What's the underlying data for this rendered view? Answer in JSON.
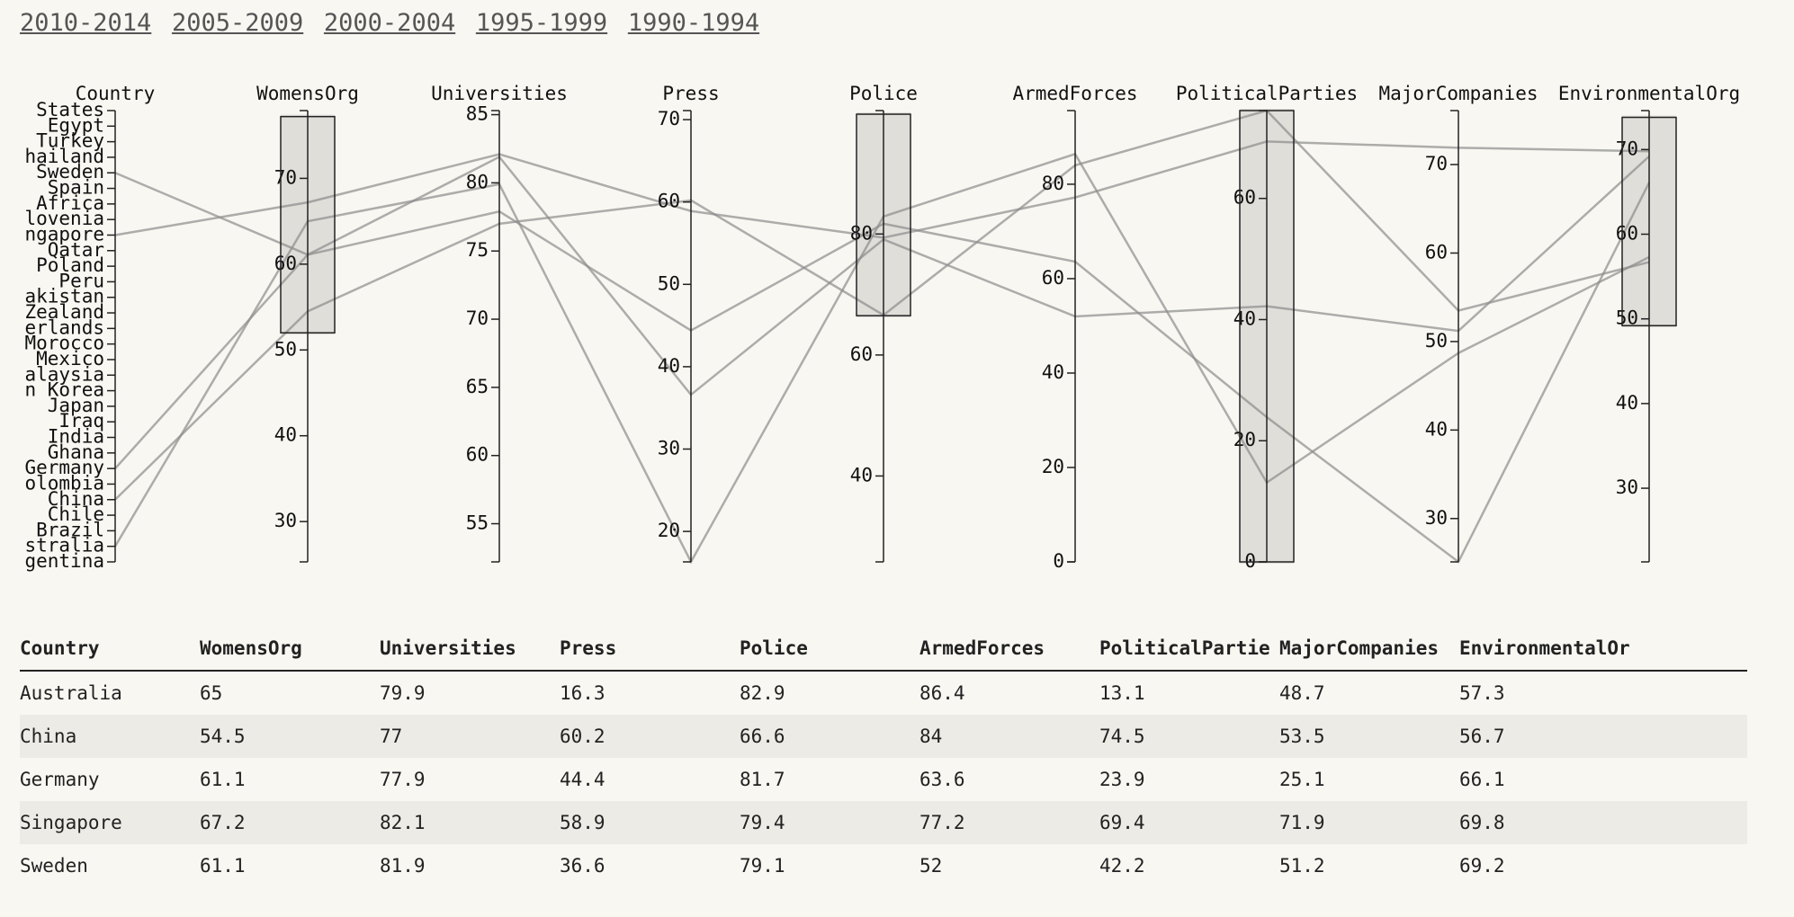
{
  "nav": {
    "periods": [
      "2010-2014",
      "2005-2009",
      "2000-2004",
      "1995-1999",
      "1990-1994"
    ]
  },
  "chart_data": {
    "type": "parallel-coordinates",
    "dimensions": [
      "Country",
      "WomensOrg",
      "Universities",
      "Press",
      "Police",
      "ArmedForces",
      "PoliticalParties",
      "MajorCompanies",
      "EnvironmentalOrg"
    ],
    "country_axis": [
      "States",
      "Egypt",
      "Turkey",
      "hailand",
      "Sweden",
      "Spain",
      "Africa",
      "lovenia",
      "ngapore",
      "Qatar",
      "Poland",
      "Peru",
      "akistan",
      "Zealand",
      "erlands",
      "Morocco",
      "Mexico",
      "alaysia",
      "n Korea",
      "Japan",
      "Iraq",
      "India",
      "Ghana",
      "Germany",
      "olombia",
      "China",
      "Chile",
      "Brazil",
      "stralia",
      "gentina"
    ],
    "axes": [
      {
        "name": "WomensOrg",
        "domain": [
          25.3,
          77.9
        ],
        "ticks": [
          30,
          40,
          50,
          60,
          70
        ]
      },
      {
        "name": "Universities",
        "domain": [
          52.2,
          85.3
        ],
        "ticks": [
          55,
          60,
          65,
          70,
          75,
          80,
          85
        ]
      },
      {
        "name": "Press",
        "domain": [
          16.3,
          71.1
        ],
        "ticks": [
          20,
          30,
          40,
          50,
          60,
          70
        ]
      },
      {
        "name": "Police",
        "domain": [
          25.8,
          100.4
        ],
        "ticks": [
          40,
          60,
          80
        ]
      },
      {
        "name": "ArmedForces",
        "domain": [
          0,
          95.6
        ],
        "ticks": [
          0,
          20,
          40,
          60,
          80
        ]
      },
      {
        "name": "PoliticalParties",
        "domain": [
          0,
          74.5
        ],
        "ticks": [
          0,
          20,
          40,
          60
        ]
      },
      {
        "name": "MajorCompanies",
        "domain": [
          25.1,
          76.1
        ],
        "ticks": [
          30,
          40,
          50,
          60,
          70
        ]
      },
      {
        "name": "EnvironmentalOrg",
        "domain": [
          21.3,
          74.6
        ],
        "ticks": [
          30,
          40,
          50,
          60,
          70
        ]
      }
    ],
    "brushes": [
      {
        "axis": "WomensOrg",
        "range": [
          52,
          77.2
        ]
      },
      {
        "axis": "Police",
        "range": [
          66.5,
          99.8
        ]
      },
      {
        "axis": "PoliticalParties",
        "range": [
          0,
          74.5
        ]
      },
      {
        "axis": "EnvironmentalOrg",
        "range": [
          49.2,
          73.8
        ]
      }
    ],
    "rows": [
      {
        "Country": "Australia",
        "WomensOrg": 65,
        "Universities": 79.9,
        "Press": 16.3,
        "Police": 82.9,
        "ArmedForces": 86.4,
        "PoliticalParties": 13.1,
        "MajorCompanies": 48.7,
        "EnvironmentalOrg": 57.3
      },
      {
        "Country": "China",
        "WomensOrg": 54.5,
        "Universities": 77,
        "Press": 60.2,
        "Police": 66.6,
        "ArmedForces": 84,
        "PoliticalParties": 74.5,
        "MajorCompanies": 53.5,
        "EnvironmentalOrg": 56.7
      },
      {
        "Country": "Germany",
        "WomensOrg": 61.1,
        "Universities": 77.9,
        "Press": 44.4,
        "Police": 81.7,
        "ArmedForces": 63.6,
        "PoliticalParties": 23.9,
        "MajorCompanies": 25.1,
        "EnvironmentalOrg": 66.1
      },
      {
        "Country": "Singapore",
        "WomensOrg": 67.2,
        "Universities": 82.1,
        "Press": 58.9,
        "Police": 79.4,
        "ArmedForces": 77.2,
        "PoliticalParties": 69.4,
        "MajorCompanies": 71.9,
        "EnvironmentalOrg": 69.8
      },
      {
        "Country": "Sweden",
        "WomensOrg": 61.1,
        "Universities": 81.9,
        "Press": 36.6,
        "Police": 79.1,
        "ArmedForces": 52,
        "PoliticalParties": 42.2,
        "MajorCompanies": 51.2,
        "EnvironmentalOrg": 69.2
      }
    ]
  },
  "table": {
    "headers": [
      "Country",
      "WomensOrg",
      "Universities",
      "Press",
      "Police",
      "ArmedForces",
      "PoliticalPartie",
      "MajorCompanies",
      "EnvironmentalOr"
    ],
    "rows": [
      [
        "Australia",
        "65",
        "79.9",
        "16.3",
        "82.9",
        "86.4",
        "13.1",
        "48.7",
        "57.3"
      ],
      [
        "China",
        "54.5",
        "77",
        "60.2",
        "66.6",
        "84",
        "74.5",
        "53.5",
        "56.7"
      ],
      [
        "Germany",
        "61.1",
        "77.9",
        "44.4",
        "81.7",
        "63.6",
        "23.9",
        "25.1",
        "66.1"
      ],
      [
        "Singapore",
        "67.2",
        "82.1",
        "58.9",
        "79.4",
        "77.2",
        "69.4",
        "71.9",
        "69.8"
      ],
      [
        "Sweden",
        "61.1",
        "81.9",
        "36.6",
        "79.1",
        "52",
        "42.2",
        "51.2",
        "69.2"
      ]
    ]
  }
}
